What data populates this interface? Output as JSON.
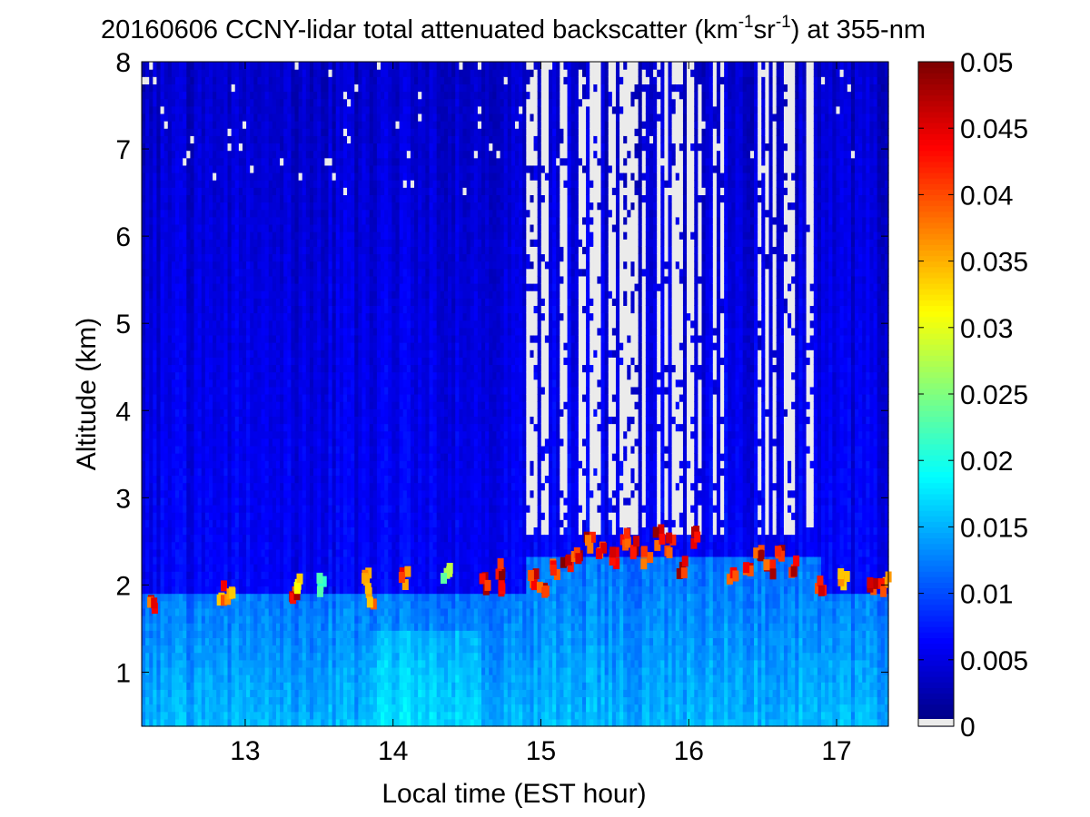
{
  "chart_data": {
    "type": "heatmap",
    "title": {
      "prefix": "20160606 CCNY-lidar total attenuated backscatter (km",
      "sup1": "-1",
      "mid": "sr",
      "sup2": "-1",
      "suffix": ") at 355-nm"
    },
    "xlabel": "Local time (EST hour)",
    "ylabel": "Altitude (km)",
    "xlim": [
      12.3,
      17.35
    ],
    "ylim": [
      0.38,
      8
    ],
    "x_ticks": [
      13,
      14,
      15,
      16,
      17
    ],
    "y_ticks": [
      1,
      2,
      3,
      4,
      5,
      6,
      7,
      8
    ],
    "colorbar": {
      "colormap": "jet",
      "range": [
        0,
        0.05
      ],
      "ticks": [
        0,
        0.005,
        0.01,
        0.015,
        0.02,
        0.025,
        0.03,
        0.035,
        0.04,
        0.045,
        0.05
      ],
      "tick_labels": [
        "0",
        "0.005",
        "0.01",
        "0.015",
        "0.02",
        "0.025",
        "0.03",
        "0.035",
        "0.04",
        "0.045",
        "0.05"
      ],
      "no_data_color": "#ebebeb"
    },
    "background_color": "#1f45e6",
    "boundary_layer": {
      "description_values_km": {
        "top_clear": 1.7,
        "top_aerosol": 2.0
      },
      "surface_value": 0.016,
      "aloft_value": 0.006
    },
    "clouds": [
      {
        "t": 12.38,
        "z": 1.75,
        "v": 0.05
      },
      {
        "t": 12.85,
        "z": 1.9,
        "v": 0.045
      },
      {
        "t": 12.9,
        "z": 1.82,
        "v": 0.04
      },
      {
        "t": 13.33,
        "z": 1.9,
        "v": 0.05
      },
      {
        "t": 13.35,
        "z": 2.05,
        "v": 0.035
      },
      {
        "t": 13.52,
        "z": 2.0,
        "v": 0.025
      },
      {
        "t": 13.83,
        "z": 2.1,
        "v": 0.04
      },
      {
        "t": 13.85,
        "z": 1.88,
        "v": 0.045
      },
      {
        "t": 14.08,
        "z": 2.1,
        "v": 0.045
      },
      {
        "t": 14.37,
        "z": 2.15,
        "v": 0.03
      },
      {
        "t": 14.62,
        "z": 2.0,
        "v": 0.05
      },
      {
        "t": 14.72,
        "z": 2.15,
        "v": 0.05
      },
      {
        "t": 14.75,
        "z": 2.0,
        "v": 0.05
      },
      {
        "t": 14.95,
        "z": 2.1,
        "v": 0.05
      },
      {
        "t": 15.02,
        "z": 2.0,
        "v": 0.05
      },
      {
        "t": 15.1,
        "z": 2.2,
        "v": 0.05
      },
      {
        "t": 15.18,
        "z": 2.3,
        "v": 0.05
      },
      {
        "t": 15.25,
        "z": 2.4,
        "v": 0.05
      },
      {
        "t": 15.33,
        "z": 2.45,
        "v": 0.05
      },
      {
        "t": 15.42,
        "z": 2.4,
        "v": 0.05
      },
      {
        "t": 15.5,
        "z": 2.3,
        "v": 0.05
      },
      {
        "t": 15.58,
        "z": 2.5,
        "v": 0.05
      },
      {
        "t": 15.65,
        "z": 2.45,
        "v": 0.05
      },
      {
        "t": 15.72,
        "z": 2.3,
        "v": 0.05
      },
      {
        "t": 15.8,
        "z": 2.55,
        "v": 0.05
      },
      {
        "t": 15.88,
        "z": 2.45,
        "v": 0.05
      },
      {
        "t": 15.96,
        "z": 2.2,
        "v": 0.05
      },
      {
        "t": 16.04,
        "z": 2.55,
        "v": 0.05
      },
      {
        "t": 16.3,
        "z": 2.15,
        "v": 0.05
      },
      {
        "t": 16.4,
        "z": 2.2,
        "v": 0.05
      },
      {
        "t": 16.48,
        "z": 2.3,
        "v": 0.05
      },
      {
        "t": 16.55,
        "z": 2.15,
        "v": 0.05
      },
      {
        "t": 16.63,
        "z": 2.4,
        "v": 0.05
      },
      {
        "t": 16.72,
        "z": 2.2,
        "v": 0.05
      },
      {
        "t": 16.9,
        "z": 1.95,
        "v": 0.05
      },
      {
        "t": 17.05,
        "z": 2.05,
        "v": 0.04
      },
      {
        "t": 17.25,
        "z": 2.0,
        "v": 0.05
      },
      {
        "t": 17.33,
        "z": 2.0,
        "v": 0.045
      }
    ],
    "no_data_region": {
      "t_start": 14.9,
      "t_end": 16.85,
      "z_start": 2.6,
      "z_end": 8
    }
  }
}
